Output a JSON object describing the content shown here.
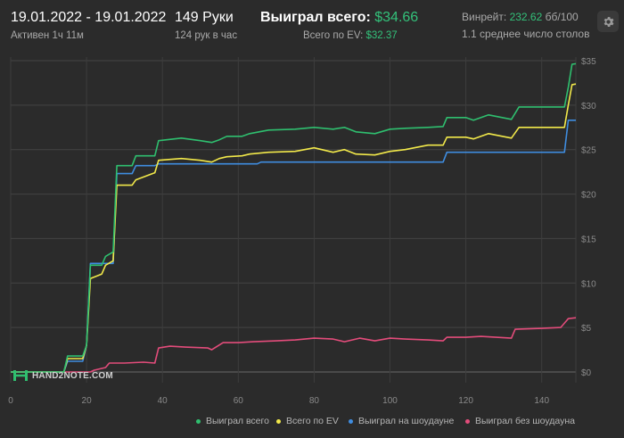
{
  "header": {
    "date_range": "19.01.2022 - 19.01.2022",
    "active_time": "Активен 1ч 11м",
    "hands": "149 Руки",
    "hands_per_hour": "124 рук в час",
    "won_total_label": "Выиграл всего:",
    "won_total_value": "$34.66",
    "ev_total_label": "Всего по EV:",
    "ev_total_value": "$32.37",
    "winrate_label": "Винрейт:",
    "winrate_value": "232.62",
    "winrate_unit": "бб/100",
    "avg_tables": "1.1 среднее число столов"
  },
  "logo": {
    "text": "HAND2NOTE.COM"
  },
  "icons": {
    "settings": "gear-icon",
    "logo": "hand2note-logo-icon"
  },
  "colors": {
    "won": "#2fbf6f",
    "ev": "#f2e94a",
    "showdown": "#3f8de0",
    "non_showdown": "#e34c7b",
    "background": "#2b2b2b",
    "grid": "#444444",
    "accent": "#33c17a"
  },
  "legend": [
    {
      "label": "Выиграл всего",
      "color": "#2fbf6f"
    },
    {
      "label": "Всего по EV",
      "color": "#f2e94a"
    },
    {
      "label": "Выиграл на шоудауне",
      "color": "#3f8de0"
    },
    {
      "label": "Выиграл без шоудауна",
      "color": "#e34c7b"
    }
  ],
  "chart_data": {
    "type": "line",
    "xlim": [
      0,
      149
    ],
    "ylim": [
      0,
      35
    ],
    "x_ticks": [
      0,
      20,
      40,
      60,
      80,
      100,
      120,
      140
    ],
    "y_ticks": [
      0,
      5,
      10,
      15,
      20,
      25,
      30,
      35
    ],
    "y_tick_labels": [
      "$0",
      "$5",
      "$10",
      "$15",
      "$20",
      "$25",
      "$30",
      "$35"
    ],
    "grid": true,
    "legend_position": "bottom-right",
    "series": [
      {
        "name": "Выиграл всего",
        "color": "#2fbf6f",
        "points": [
          [
            0,
            0
          ],
          [
            14,
            0
          ],
          [
            15,
            1.8
          ],
          [
            19,
            1.8
          ],
          [
            20,
            3
          ],
          [
            21,
            12
          ],
          [
            24,
            12
          ],
          [
            25,
            13
          ],
          [
            27,
            13.5
          ],
          [
            28,
            23.2
          ],
          [
            32,
            23.2
          ],
          [
            33,
            24.3
          ],
          [
            38,
            24.3
          ],
          [
            39,
            26
          ],
          [
            45,
            26.3
          ],
          [
            50,
            26
          ],
          [
            53,
            25.8
          ],
          [
            55,
            26.1
          ],
          [
            57,
            26.5
          ],
          [
            61,
            26.5
          ],
          [
            63,
            26.8
          ],
          [
            68,
            27.2
          ],
          [
            75,
            27.3
          ],
          [
            80,
            27.5
          ],
          [
            85,
            27.3
          ],
          [
            88,
            27.5
          ],
          [
            91,
            27
          ],
          [
            96,
            26.8
          ],
          [
            100,
            27.3
          ],
          [
            104,
            27.4
          ],
          [
            110,
            27.5
          ],
          [
            114,
            27.6
          ],
          [
            115,
            28.6
          ],
          [
            120,
            28.6
          ],
          [
            122,
            28.3
          ],
          [
            126,
            28.9
          ],
          [
            132,
            28.4
          ],
          [
            134,
            29.8
          ],
          [
            140,
            29.8
          ],
          [
            146,
            29.8
          ],
          [
            147,
            32
          ],
          [
            148,
            34.6
          ],
          [
            149,
            34.66
          ]
        ]
      },
      {
        "name": "Всего по EV",
        "color": "#f2e94a",
        "points": [
          [
            0,
            0
          ],
          [
            14,
            0
          ],
          [
            15,
            1.5
          ],
          [
            19,
            1.5
          ],
          [
            20,
            3
          ],
          [
            21,
            10.5
          ],
          [
            24,
            11
          ],
          [
            25,
            12
          ],
          [
            27,
            12.5
          ],
          [
            28,
            21
          ],
          [
            32,
            21
          ],
          [
            33,
            21.6
          ],
          [
            38,
            22.4
          ],
          [
            39,
            23.8
          ],
          [
            45,
            24
          ],
          [
            50,
            23.8
          ],
          [
            53,
            23.6
          ],
          [
            55,
            24
          ],
          [
            57,
            24.2
          ],
          [
            61,
            24.3
          ],
          [
            63,
            24.5
          ],
          [
            68,
            24.7
          ],
          [
            75,
            24.8
          ],
          [
            80,
            25.2
          ],
          [
            85,
            24.7
          ],
          [
            88,
            25
          ],
          [
            91,
            24.5
          ],
          [
            96,
            24.4
          ],
          [
            100,
            24.8
          ],
          [
            104,
            25
          ],
          [
            110,
            25.5
          ],
          [
            114,
            25.5
          ],
          [
            115,
            26.4
          ],
          [
            120,
            26.4
          ],
          [
            122,
            26.2
          ],
          [
            126,
            26.8
          ],
          [
            132,
            26.3
          ],
          [
            134,
            27.5
          ],
          [
            140,
            27.5
          ],
          [
            146,
            27.5
          ],
          [
            147,
            30
          ],
          [
            148,
            32.3
          ],
          [
            149,
            32.37
          ]
        ]
      },
      {
        "name": "Выиграл на шоудауне",
        "color": "#3f8de0",
        "points": [
          [
            0,
            0
          ],
          [
            14,
            0
          ],
          [
            15,
            1.2
          ],
          [
            19,
            1.2
          ],
          [
            20,
            3
          ],
          [
            21,
            12.2
          ],
          [
            27,
            12.2
          ],
          [
            28,
            22.3
          ],
          [
            32,
            22.3
          ],
          [
            33,
            23.2
          ],
          [
            38,
            23.2
          ],
          [
            39,
            23.4
          ],
          [
            65,
            23.4
          ],
          [
            66,
            23.6
          ],
          [
            110,
            23.6
          ],
          [
            114,
            23.6
          ],
          [
            115,
            24.7
          ],
          [
            146,
            24.7
          ],
          [
            147,
            28.3
          ],
          [
            149,
            28.3
          ]
        ]
      },
      {
        "name": "Выиграл без шоудауна",
        "color": "#e34c7b",
        "points": [
          [
            0,
            0
          ],
          [
            21,
            0
          ],
          [
            22,
            0.2
          ],
          [
            25,
            0.5
          ],
          [
            26,
            1
          ],
          [
            30,
            1
          ],
          [
            35,
            1.1
          ],
          [
            38,
            1
          ],
          [
            39,
            2.7
          ],
          [
            42,
            2.9
          ],
          [
            46,
            2.8
          ],
          [
            52,
            2.7
          ],
          [
            53,
            2.5
          ],
          [
            56,
            3.3
          ],
          [
            60,
            3.3
          ],
          [
            64,
            3.4
          ],
          [
            70,
            3.5
          ],
          [
            75,
            3.6
          ],
          [
            80,
            3.8
          ],
          [
            85,
            3.7
          ],
          [
            88,
            3.4
          ],
          [
            92,
            3.8
          ],
          [
            96,
            3.5
          ],
          [
            100,
            3.8
          ],
          [
            104,
            3.7
          ],
          [
            110,
            3.6
          ],
          [
            114,
            3.5
          ],
          [
            115,
            3.9
          ],
          [
            120,
            3.9
          ],
          [
            124,
            4
          ],
          [
            128,
            3.9
          ],
          [
            132,
            3.8
          ],
          [
            133,
            4.8
          ],
          [
            140,
            4.9
          ],
          [
            145,
            5
          ],
          [
            147,
            6
          ],
          [
            149,
            6.1
          ]
        ]
      }
    ]
  }
}
